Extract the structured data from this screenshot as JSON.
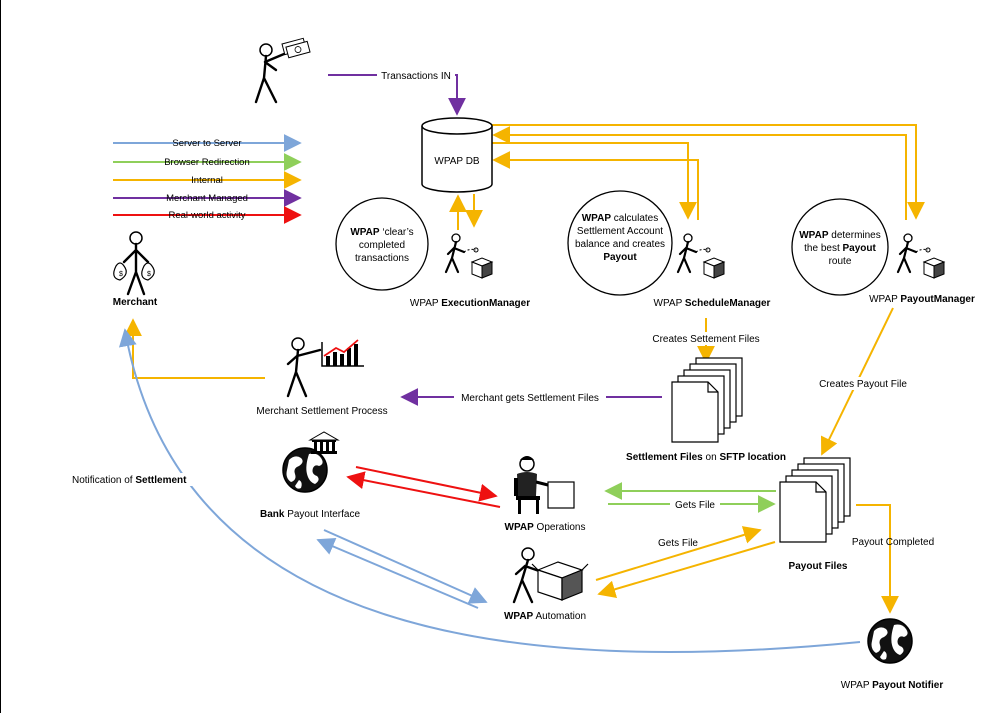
{
  "colors": {
    "server_to_server": "#7ea6d9",
    "browser_redirection": "#8fcf5a",
    "internal": "#f5b400",
    "merchant_managed": "#7030a0",
    "real_world": "#ee1111",
    "ink": "#000000"
  },
  "legend": [
    {
      "label": "Server to Server",
      "color_key": "server_to_server"
    },
    {
      "label": "Browser Redirection",
      "color_key": "browser_redirection"
    },
    {
      "label": "Internal",
      "color_key": "internal"
    },
    {
      "label": "Merchant Managed",
      "color_key": "merchant_managed"
    },
    {
      "label": "Real-world activity",
      "color_key": "real_world"
    }
  ],
  "nodes": {
    "db": "WPAP DB",
    "merchant": "Merchant",
    "execution": {
      "prefix": "WPAP ",
      "bold": "ExecutionManager"
    },
    "schedule": {
      "prefix": "WPAP ",
      "bold": "ScheduleManager"
    },
    "payout_mgr": {
      "prefix": "WPAP ",
      "bold": "PayoutManager"
    },
    "merchant_settlement": "Merchant Settlement Process",
    "settlement_files": {
      "b1": "Settlement Files",
      "mid": " on ",
      "b2": "SFTP location"
    },
    "bank": {
      "bold": "Bank",
      "rest": " Payout Interface"
    },
    "operations": {
      "bold": "WPAP",
      "rest": " Operations"
    },
    "automation": {
      "bold": "WPAP",
      "rest": " Automation"
    },
    "payout_files": "Payout Files",
    "notifier": {
      "prefix": "WPAP ",
      "bold": "Payout Notifier"
    }
  },
  "bubbles": {
    "execution": {
      "l1_bold": "WPAP",
      "l1_rest": " ‘clear’s",
      "l2": "completed",
      "l3": "transactions"
    },
    "schedule": {
      "l1_bold": "WPAP",
      "l1_rest": " calculates",
      "l2": "Settlement Account",
      "l3": "balance and creates",
      "l4": "Payout"
    },
    "payout": {
      "l1_bold": "WPAP",
      "l1_rest": " determines",
      "l2_pre": "the best ",
      "l2_bold": "Payout",
      "l3": "route"
    }
  },
  "edges": {
    "transactions_in": "Transactions IN",
    "creates_settlement_files": "Creates Settement Files",
    "merchant_gets_settlement": "Merchant gets Settlement Files",
    "creates_payout_file": "Creates Payout File",
    "gets_file_ops": "Gets File",
    "gets_file_auto": "Gets File",
    "payout_completed": "Payout Completed",
    "notification": {
      "pre": "Notification of ",
      "bold": "Settlement"
    }
  },
  "icons": [
    "person-with-money-icon",
    "database-icon",
    "merchant-moneybags-icon",
    "person-with-box-icon",
    "person-with-chart-icon",
    "document-stack-icon",
    "globe-bank-icon",
    "operator-computer-icon",
    "globe-icon"
  ]
}
